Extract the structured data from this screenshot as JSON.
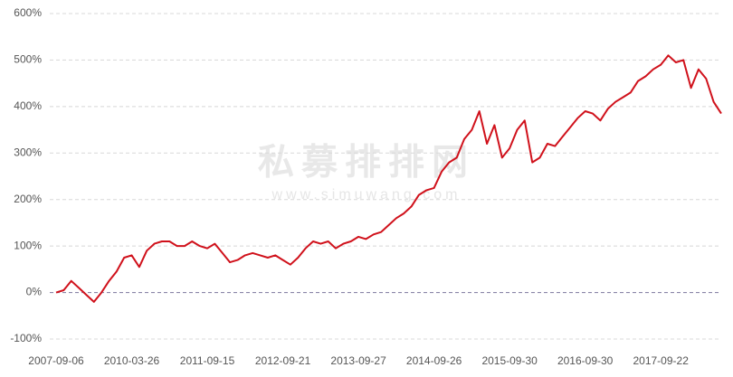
{
  "chart_data": {
    "type": "line",
    "watermark": "私募排排网",
    "watermark_url": "www.simuwang.com",
    "categories": [
      "2007-09-06",
      null,
      null,
      null,
      null,
      null,
      null,
      null,
      null,
      null,
      "2010-03-26",
      null,
      null,
      null,
      null,
      null,
      null,
      null,
      null,
      null,
      "2011-09-15",
      null,
      null,
      null,
      null,
      null,
      null,
      null,
      null,
      null,
      "2012-09-21",
      null,
      null,
      null,
      null,
      null,
      null,
      null,
      null,
      null,
      "2013-09-27",
      null,
      null,
      null,
      null,
      null,
      null,
      null,
      null,
      null,
      "2014-09-26",
      null,
      null,
      null,
      null,
      null,
      null,
      null,
      null,
      null,
      "2015-09-30",
      null,
      null,
      null,
      null,
      null,
      null,
      null,
      null,
      null,
      "2016-09-30",
      null,
      null,
      null,
      null,
      null,
      null,
      null,
      null,
      null,
      "2017-09-22",
      null,
      null,
      null,
      null,
      null,
      null,
      null,
      null
    ],
    "values": [
      0,
      5,
      25,
      10,
      -5,
      -20,
      0,
      25,
      45,
      75,
      80,
      55,
      90,
      105,
      110,
      110,
      100,
      100,
      110,
      100,
      95,
      105,
      85,
      65,
      70,
      80,
      85,
      80,
      75,
      80,
      70,
      60,
      75,
      95,
      110,
      105,
      110,
      95,
      105,
      110,
      120,
      115,
      125,
      130,
      145,
      160,
      170,
      185,
      210,
      220,
      225,
      260,
      280,
      290,
      330,
      350,
      390,
      320,
      360,
      290,
      310,
      350,
      370,
      280,
      290,
      320,
      315,
      335,
      355,
      375,
      390,
      385,
      370,
      395,
      410,
      420,
      430,
      455,
      465,
      480,
      490,
      510,
      495,
      500,
      440,
      480,
      460,
      410,
      385
    ],
    "color": "#d0111b",
    "ylim": [
      -100,
      600
    ],
    "yticks": [
      {
        "value": -100,
        "label": "-100%"
      },
      {
        "value": 0,
        "label": "0%"
      },
      {
        "value": 100,
        "label": "100%"
      },
      {
        "value": 200,
        "label": "200%"
      },
      {
        "value": 300,
        "label": "300%"
      },
      {
        "value": 400,
        "label": "400%"
      },
      {
        "value": 500,
        "label": "500%"
      },
      {
        "value": 600,
        "label": "600%"
      }
    ],
    "grid": true
  }
}
